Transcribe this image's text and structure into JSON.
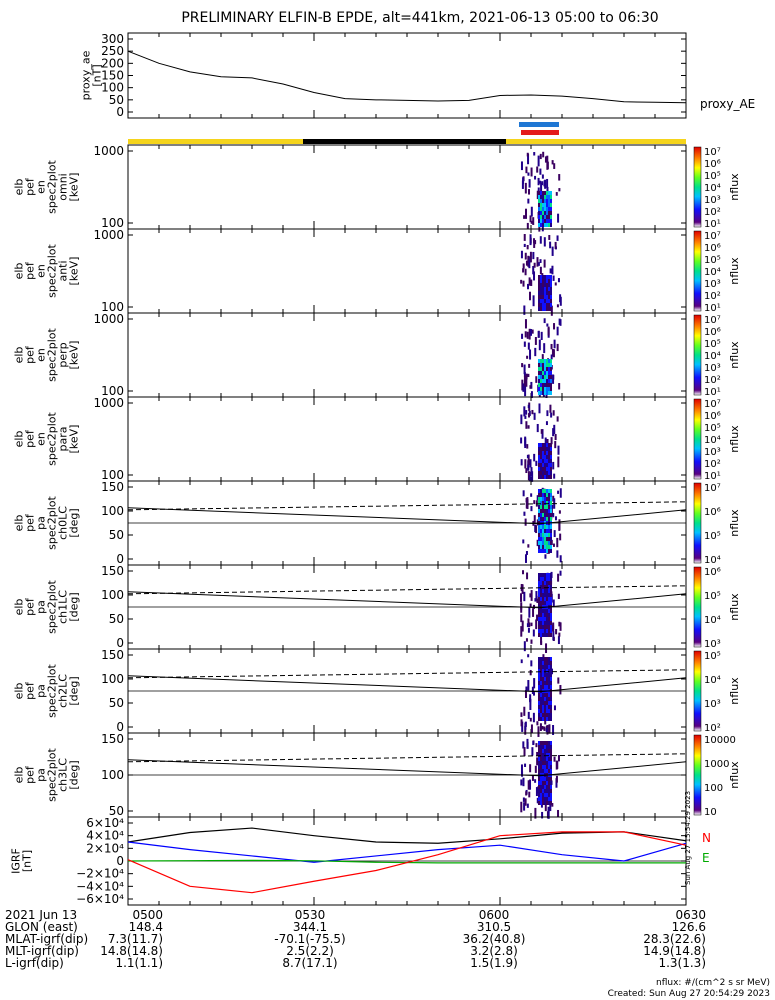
{
  "title": "PRELIMINARY ELFIN-B EPDE, alt=441km, 2021-06-13 05:00 to 06:30",
  "colors": {
    "axis": "#000000",
    "science_bar": "#f5d41c",
    "eclipse_bar": "#000000",
    "ifm_bar_blue": "#1f77d4",
    "ifm_bar_red": "#e41a1c",
    "igrf_x": "#0000ff",
    "igrf_y": "#00aa00",
    "igrf_z": "#ff0000",
    "igrf_mag": "#000000"
  },
  "chart_data": [
    {
      "id": "proxy_ae",
      "type": "line",
      "ylabel": "proxy_ae\n[nT]",
      "yticks": [
        "300",
        "250",
        "200",
        "150",
        "100",
        "50",
        "0"
      ],
      "ylim": [
        0,
        300
      ],
      "legend": "proxy_AE",
      "x_minutes": [
        0,
        5,
        10,
        15,
        20,
        25,
        30,
        35,
        40,
        45,
        50,
        55,
        60,
        65,
        70,
        75,
        80,
        85,
        90
      ],
      "values": [
        250,
        200,
        165,
        145,
        140,
        115,
        80,
        55,
        50,
        48,
        45,
        48,
        68,
        70,
        65,
        55,
        42,
        40,
        38
      ]
    },
    {
      "id": "omni",
      "type": "heatmap",
      "ylabel": "elb\npef\nen\nspec2plot\nomni\n[keV]",
      "yticks": [
        "1000",
        "100"
      ],
      "cbar_label": "nflux",
      "cbar_ticks": [
        "10⁷",
        "10⁶",
        "10⁵",
        "10⁴",
        "10³",
        "10²",
        "10¹"
      ]
    },
    {
      "id": "anti",
      "type": "heatmap",
      "ylabel": "elb\npef\nen\nspec2plot\nanti\n[keV]",
      "yticks": [
        "1000",
        "100"
      ],
      "cbar_label": "nflux",
      "cbar_ticks": [
        "10⁷",
        "10⁶",
        "10⁵",
        "10⁴",
        "10³",
        "10²",
        "10¹"
      ]
    },
    {
      "id": "perp",
      "type": "heatmap",
      "ylabel": "elb\npef\nen\nspec2plot\nperp\n[keV]",
      "yticks": [
        "1000",
        "100"
      ],
      "cbar_label": "nflux",
      "cbar_ticks": [
        "10⁷",
        "10⁶",
        "10⁵",
        "10⁴",
        "10³",
        "10²",
        "10¹"
      ]
    },
    {
      "id": "para",
      "type": "heatmap",
      "ylabel": "elb\npef\nen\nspec2plot\npara\n[keV]",
      "yticks": [
        "1000",
        "100"
      ],
      "cbar_label": "nflux",
      "cbar_ticks": [
        "10⁷",
        "10⁶",
        "10⁵",
        "10⁴",
        "10³",
        "10²",
        "10¹"
      ]
    },
    {
      "id": "ch0",
      "type": "heatmap",
      "ylabel": "elb\npef\npa\nspec2plot\nch0LC\n[deg]",
      "yticks": [
        "150",
        "100",
        "50",
        "0"
      ],
      "cbar_label": "nflux",
      "cbar_ticks": [
        "10⁷",
        "10⁶",
        "10⁵",
        "10⁴"
      ]
    },
    {
      "id": "ch1",
      "type": "heatmap",
      "ylabel": "elb\npef\npa\nspec2plot\nch1LC\n[deg]",
      "yticks": [
        "150",
        "100",
        "50",
        "0"
      ],
      "cbar_label": "nflux",
      "cbar_ticks": [
        "10⁶",
        "10⁵",
        "10⁴",
        "10³"
      ]
    },
    {
      "id": "ch2",
      "type": "heatmap",
      "ylabel": "elb\npef\npa\nspec2plot\nch2LC\n[deg]",
      "yticks": [
        "150",
        "100",
        "50",
        "0"
      ],
      "cbar_label": "nflux",
      "cbar_ticks": [
        "10⁵",
        "10⁴",
        "10³",
        "10²"
      ]
    },
    {
      "id": "ch3",
      "type": "heatmap",
      "ylabel": "elb\npef\npa\nspec2plot\nch3LC\n[deg]",
      "yticks": [
        "150",
        "100",
        "50"
      ],
      "cbar_label": "nflux",
      "cbar_ticks": [
        "10000",
        "1000",
        "100",
        "10"
      ]
    },
    {
      "id": "igrf",
      "type": "line",
      "ylabel": "IGRF\n[nT]",
      "yticks": [
        "6×10⁴",
        "4×10⁴",
        "2×10⁴",
        "0",
        "−2×10⁴",
        "−4×10⁴",
        "−6×10⁴"
      ],
      "ylim": [
        -60000,
        60000
      ],
      "legend": [
        "N",
        "E"
      ],
      "x_minutes": [
        0,
        10,
        20,
        30,
        40,
        50,
        60,
        70,
        80,
        90
      ],
      "series": [
        {
          "values": [
            30000,
            45000,
            52000,
            40000,
            30000,
            28000,
            35000,
            44000,
            46000,
            32000
          ]
        },
        {
          "values": [
            30000,
            18000,
            8000,
            -2000,
            8000,
            18000,
            25000,
            10000,
            0,
            28000
          ]
        },
        {
          "values": [
            0,
            500,
            1000,
            300,
            -2000,
            -3000,
            -3000,
            -3000,
            -3000,
            -3000
          ]
        },
        {
          "values": [
            2000,
            -40000,
            -50000,
            -32000,
            -15000,
            10000,
            40000,
            46000,
            46000,
            25000
          ]
        }
      ]
    }
  ],
  "x_axis": {
    "ticks": [
      "0500",
      "0530",
      "0600",
      "0630"
    ],
    "rows": [
      {
        "label": "2021 Jun 13",
        "values": [
          "0500",
          "0530",
          "0600",
          "0630"
        ]
      },
      {
        "label": "GLON (east)",
        "values": [
          "148.4",
          "344.1",
          "310.5",
          "126.6"
        ]
      },
      {
        "label": "MLAT-igrf(dip)",
        "values": [
          "7.3(11.7)",
          "-70.1(-75.5)",
          "36.2(40.8)",
          "28.3(22.6)"
        ]
      },
      {
        "label": "MLT-igrf(dip)",
        "values": [
          "14.8(14.8)",
          "2.5(2.2)",
          "3.2(2.8)",
          "14.9(14.8)"
        ]
      },
      {
        "label": "L-igrf(dip)",
        "values": [
          "1.1(1.1)",
          "8.7(17.1)",
          "1.5(1.9)",
          "1.3(1.3)"
        ]
      }
    ]
  },
  "footer": {
    "units": "nflux: #/(cm^2 s sr MeV)",
    "created": "Created: Sun Aug 27 20:54:29 2023",
    "side_stamp": "Sun Aug 27 15:54:29 2023"
  }
}
